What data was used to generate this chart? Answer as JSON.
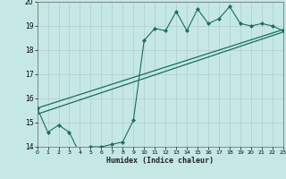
{
  "xlabel": "Humidex (Indice chaleur)",
  "xlim": [
    0,
    23
  ],
  "ylim": [
    14,
    20
  ],
  "yticks": [
    14,
    15,
    16,
    17,
    18,
    19,
    20
  ],
  "xticks": [
    0,
    1,
    2,
    3,
    4,
    5,
    6,
    7,
    8,
    9,
    10,
    11,
    12,
    13,
    14,
    15,
    16,
    17,
    18,
    19,
    20,
    21,
    22,
    23
  ],
  "background_color": "#c5e8e5",
  "grid_color": "#b0cccc",
  "line_color": "#1a6b5e",
  "line1_x": [
    0,
    1,
    2,
    3,
    4,
    5,
    6,
    7,
    8,
    9,
    10,
    11,
    12,
    13,
    14,
    15,
    16,
    17,
    18,
    19,
    20,
    21,
    22,
    23
  ],
  "line1_y": [
    15.6,
    14.6,
    14.9,
    14.6,
    13.7,
    14.0,
    14.0,
    14.1,
    14.2,
    15.1,
    18.4,
    18.9,
    18.8,
    19.6,
    18.8,
    19.7,
    19.1,
    19.3,
    19.8,
    19.1,
    19.0,
    19.1,
    19.0,
    18.8
  ],
  "trend1_x": [
    0,
    23
  ],
  "trend1_y": [
    15.6,
    18.85
  ],
  "trend2_x": [
    0,
    23
  ],
  "trend2_y": [
    15.35,
    18.75
  ]
}
